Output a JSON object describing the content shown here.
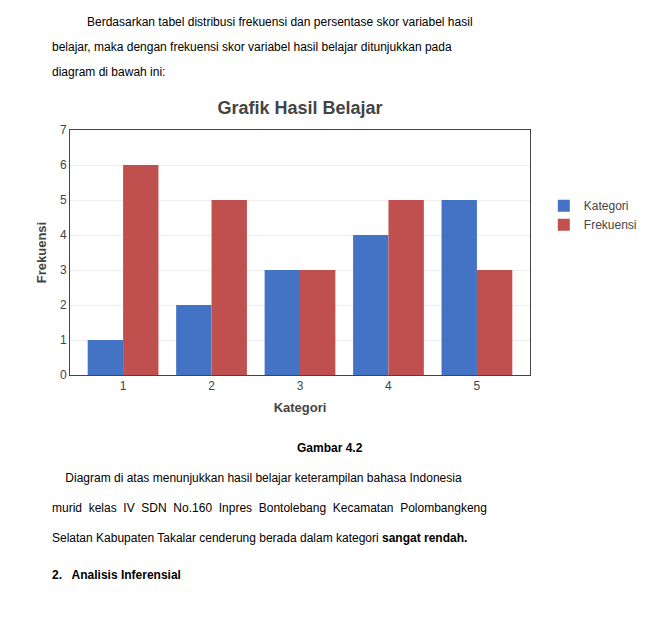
{
  "chart_data": {
    "type": "bar",
    "title": "Grafik Hasil Belajar",
    "xlabel": "Kategori",
    "ylabel": "Frekuensi",
    "x": [
      1,
      2,
      3,
      4,
      5
    ],
    "series": [
      {
        "name": "Kategori",
        "color": "#4472C4",
        "values": [
          1,
          2,
          3,
          4,
          5
        ]
      },
      {
        "name": "Frekuensi",
        "color": "#C0504D",
        "values": [
          6,
          5,
          3,
          5,
          3
        ]
      }
    ],
    "xlim": [
      0.4,
      5.6
    ],
    "xticks": [
      1,
      2,
      3,
      4,
      5
    ],
    "ylim": [
      0,
      7
    ],
    "yticks": [
      0,
      1,
      2,
      3,
      4,
      5,
      6,
      7
    ],
    "grid": "y",
    "legend": "right",
    "annotations": [
      "Berdasarkan tabel distribusi frekuensi dan persentase skor variabel hasil",
      "belajar, maka dengan frekuensi skor variabel hasil belajar ditunjukkan pada",
      "diagram di bawah ini:",
      "Gambar 4.2",
      "    Diagram di atas menunjukkan hasil belajar keterampilan bahasa Indonesia",
      "murid  kelas  IV  SDN  No.160  Inpres  Bontolebang  Kecamatan  Polombangkeng",
      "Selatan Kabupaten Takalar cenderung berada dalam kategori ",
      "sangat rendah.",
      "2.   Analisis Inferensial"
    ]
  }
}
